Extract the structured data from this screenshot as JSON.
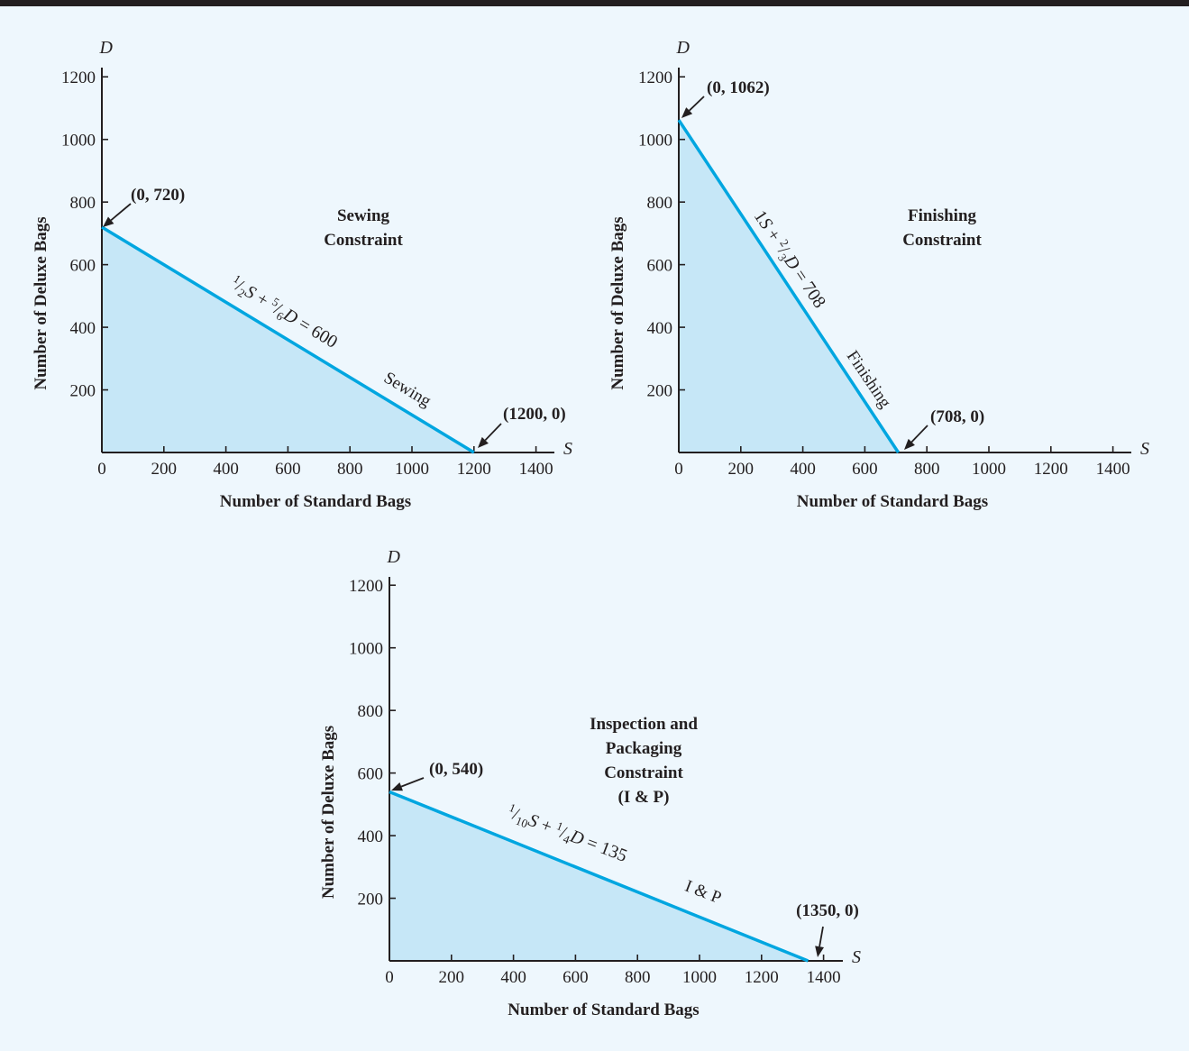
{
  "colors": {
    "background": "#eef7fd",
    "top_bar": "#231f20",
    "constraint_line": "#00a6e0",
    "feasible_region": "#c6e7f7",
    "text": "#231f20"
  },
  "chart_data": [
    {
      "type": "area",
      "title": "Sewing Constraint",
      "title_lines": [
        "Sewing",
        "Constraint"
      ],
      "xvar": "S",
      "yvar": "D",
      "xlabel": "Number of Standard Bags",
      "ylabel": "Number of Deluxe Bags",
      "xlim": [
        0,
        1450
      ],
      "ylim": [
        0,
        1250
      ],
      "xticks": [
        0,
        200,
        400,
        600,
        800,
        1000,
        1200,
        1400
      ],
      "yticks": [
        200,
        400,
        600,
        800,
        1000,
        1200
      ],
      "xtick_labels": [
        "0",
        "200",
        "400",
        "600",
        "800",
        "1000",
        "1200",
        "1400"
      ],
      "ytick_labels": [
        "200",
        "400",
        "600",
        "800",
        "1000",
        "1200"
      ],
      "line": {
        "x": [
          0,
          1200
        ],
        "y": [
          720,
          0
        ]
      },
      "equation": {
        "prefix": "",
        "a_num": "1",
        "a_den": "2",
        "b_num": "5",
        "b_den": "6",
        "rhs": "600"
      },
      "line_name": "Sewing",
      "intercepts": [
        {
          "label": "(0, 720)",
          "x": 0,
          "y": 720
        },
        {
          "label": "(1200, 0)",
          "x": 1200,
          "y": 0
        }
      ],
      "shaded": true
    },
    {
      "type": "area",
      "title": "Finishing Constraint",
      "title_lines": [
        "Finishing",
        "Constraint"
      ],
      "xvar": "S",
      "yvar": "D",
      "xlabel": "Number of Standard Bags",
      "ylabel": "Number of Deluxe Bags",
      "xlim": [
        0,
        1450
      ],
      "ylim": [
        0,
        1250
      ],
      "xticks": [
        0,
        200,
        400,
        600,
        800,
        1000,
        1200,
        1400
      ],
      "yticks": [
        200,
        400,
        600,
        800,
        1000,
        1200
      ],
      "xtick_labels": [
        "0",
        "200",
        "400",
        "600",
        "800",
        "1000",
        "1200",
        "1400"
      ],
      "ytick_labels": [
        "200",
        "400",
        "600",
        "800",
        "1000",
        "1200"
      ],
      "line": {
        "x": [
          0,
          708
        ],
        "y": [
          1062,
          0
        ]
      },
      "equation": {
        "prefix": "1",
        "a_num": "",
        "a_den": "",
        "b_num": "2",
        "b_den": "3",
        "rhs": "708"
      },
      "line_name": "Finishing",
      "intercepts": [
        {
          "label": "(0, 1062)",
          "x": 0,
          "y": 1062
        },
        {
          "label": "(708, 0)",
          "x": 708,
          "y": 0
        }
      ],
      "shaded": true
    },
    {
      "type": "area",
      "title": "Inspection and Packaging Constraint (I & P)",
      "title_lines": [
        "Inspection and",
        "Packaging",
        "Constraint",
        "(I & P)"
      ],
      "xvar": "S",
      "yvar": "D",
      "xlabel": "Number of Standard Bags",
      "ylabel": "Number of Deluxe Bags",
      "xlim": [
        0,
        1450
      ],
      "ylim": [
        0,
        1250
      ],
      "xticks": [
        0,
        200,
        400,
        600,
        800,
        1000,
        1200,
        1400
      ],
      "yticks": [
        200,
        400,
        600,
        800,
        1000,
        1200
      ],
      "xtick_labels": [
        "0",
        "200",
        "400",
        "600",
        "800",
        "1000",
        "1200",
        "1400"
      ],
      "ytick_labels": [
        "200",
        "400",
        "600",
        "800",
        "1000",
        "1200"
      ],
      "line": {
        "x": [
          0,
          1350
        ],
        "y": [
          540,
          0
        ]
      },
      "equation": {
        "prefix": "",
        "a_num": "1",
        "a_den": "10",
        "b_num": "1",
        "b_den": "4",
        "rhs": "135"
      },
      "line_name": "I & P",
      "intercepts": [
        {
          "label": "(0, 540)",
          "x": 0,
          "y": 540
        },
        {
          "label": "(1350, 0)",
          "x": 1350,
          "y": 0
        }
      ],
      "shaded": true
    }
  ]
}
